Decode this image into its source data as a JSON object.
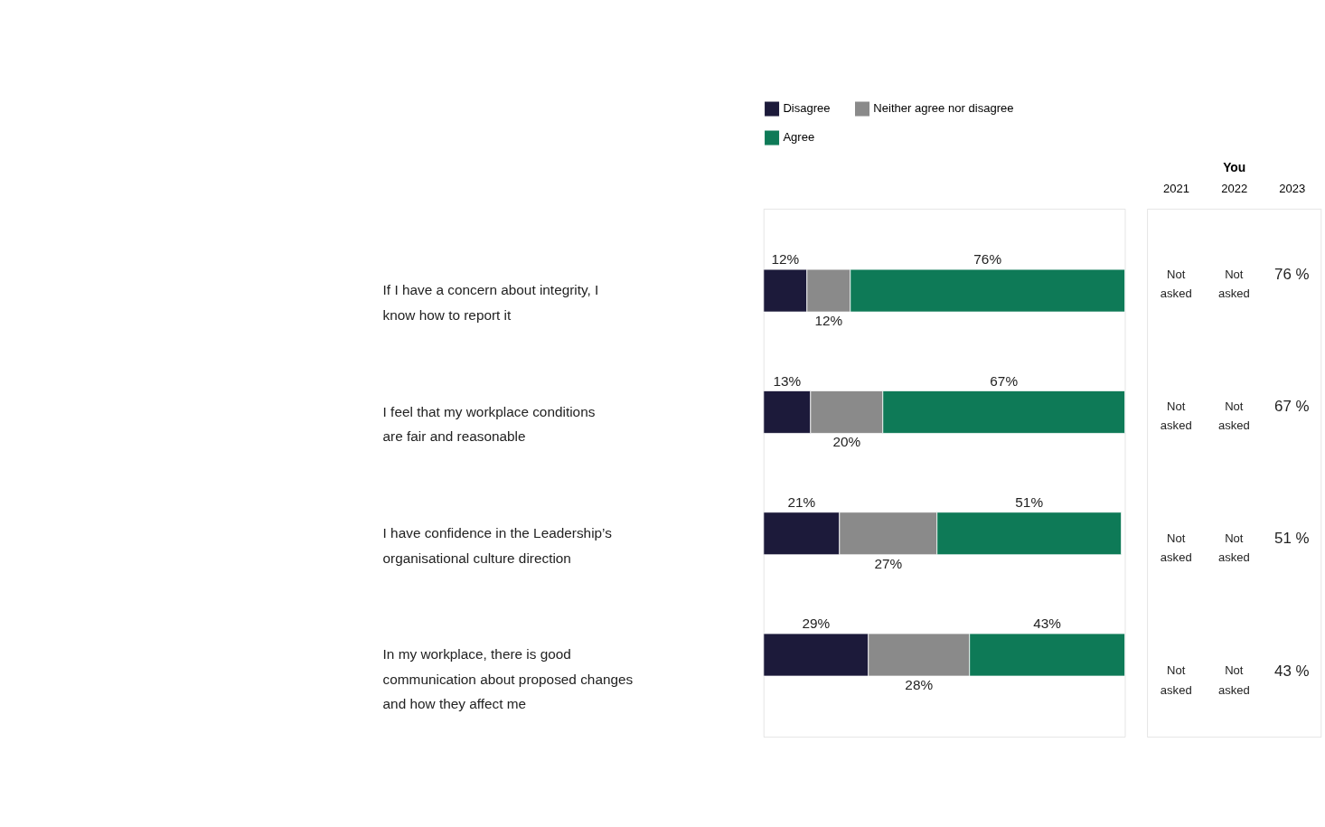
{
  "chart_data": [
    {
      "type": "bar",
      "orientation": "horizontal",
      "stacked": true,
      "legend": "top",
      "categories": [
        "If I have a concern about integrity, I know how to report it",
        "I feel that my workplace conditions are fair and reasonable",
        "I have confidence in the Leadership’s organisational culture direction",
        "In my workplace, there is good communication about proposed changes and how they affect me"
      ],
      "series": [
        {
          "name": "Disagree",
          "color": "#1c1a3a",
          "values": [
            12,
            13,
            21,
            29
          ],
          "value_labels": [
            "12%",
            "13%",
            "21%",
            "29%"
          ]
        },
        {
          "name": "Neither agree nor disagree",
          "color": "#8a8a8a",
          "values": [
            12,
            20,
            27,
            28
          ],
          "value_labels": [
            "12%",
            "20%",
            "27%",
            "28%"
          ]
        },
        {
          "name": "Agree",
          "color": "#0e7a57",
          "values": [
            76,
            67,
            51,
            43
          ],
          "value_labels": [
            "76%",
            "67%",
            "51%",
            "43%"
          ]
        }
      ]
    },
    {
      "type": "other",
      "title": "You",
      "categories": [
        "2021",
        "2022",
        "2023"
      ],
      "cell_labels": [
        [
          "Not asked",
          "Not asked",
          "76 %"
        ],
        [
          "Not asked",
          "Not asked",
          "67 %"
        ],
        [
          "Not asked",
          "Not asked",
          "51 %"
        ],
        [
          "Not asked",
          "Not asked",
          "43 %"
        ]
      ]
    }
  ]
}
